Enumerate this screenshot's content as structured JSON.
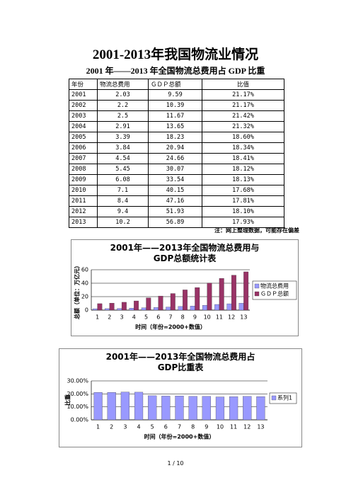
{
  "title": "2001-2013年我国物流业情况",
  "subtitle": "2001 年——2013 年全国物流总费用占 GDP 比重",
  "table": {
    "header": [
      "年份",
      "物流总费用",
      "ＧＤＰ总额",
      "比值"
    ],
    "rows": [
      [
        "2001",
        "2.03",
        "9.59",
        "21.17%"
      ],
      [
        "2002",
        "2.2",
        "10.39",
        "21.17%"
      ],
      [
        "2003",
        "2.5",
        "11.67",
        "21.42%"
      ],
      [
        "2004",
        "2.91",
        "13.65",
        "21.32%"
      ],
      [
        "2005",
        "3.39",
        "18.23",
        "18.60%"
      ],
      [
        "2006",
        "3.84",
        "20.94",
        "18.34%"
      ],
      [
        "2007",
        "4.54",
        "24.66",
        "18.41%"
      ],
      [
        "2008",
        "5.45",
        "30.07",
        "18.12%"
      ],
      [
        "2009",
        "6.08",
        "33.54",
        "18.13%"
      ],
      [
        "2010",
        "7.1",
        "40.15",
        "17.68%"
      ],
      [
        "2011",
        "8.4",
        "47.16",
        "17.81%"
      ],
      [
        "2012",
        "9.4",
        "51.93",
        "18.10%"
      ],
      [
        "2013",
        "10.2",
        "56.89",
        "17.93%"
      ]
    ]
  },
  "note": "注：网上整理数据，可能存在偏差",
  "chart_data": [
    {
      "type": "bar",
      "title": "2001年——2013年全国物流总费用与GDP总额统计表",
      "y_label": "总额（单位：万亿元）",
      "x_label": "时间（年份=2000+数值）",
      "categories": [
        "1",
        "2",
        "3",
        "4",
        "5",
        "6",
        "7",
        "8",
        "9",
        "10",
        "11",
        "12",
        "13"
      ],
      "series": [
        {
          "name": "物流总费用",
          "color": "#9999ff",
          "values": [
            2.03,
            2.2,
            2.5,
            2.91,
            3.39,
            3.84,
            4.54,
            5.45,
            6.08,
            7.1,
            8.4,
            9.4,
            10.2
          ]
        },
        {
          "name": "ＧＤＰ总额",
          "color": "#993366",
          "values": [
            9.59,
            10.39,
            11.67,
            13.65,
            18.23,
            20.94,
            24.66,
            30.07,
            33.54,
            40.15,
            47.16,
            51.93,
            56.89
          ]
        }
      ],
      "ylim": [
        0,
        60
      ],
      "yticks": [
        0,
        20,
        40,
        60
      ],
      "grid": true,
      "legend": "right"
    },
    {
      "type": "bar",
      "title": "2001年——2013年全国物流总费用占GDP比重表",
      "y_label": "比重",
      "x_label": "时间（年份=2000+数值）",
      "categories": [
        "1",
        "2",
        "3",
        "4",
        "5",
        "6",
        "7",
        "8",
        "9",
        "10",
        "11",
        "12",
        "13"
      ],
      "series": [
        {
          "name": "系列1",
          "color": "#9999ff",
          "values": [
            21.17,
            21.17,
            21.42,
            21.32,
            18.6,
            18.34,
            18.41,
            18.12,
            18.13,
            17.68,
            17.81,
            18.1,
            17.93
          ]
        }
      ],
      "ylim": [
        0,
        30
      ],
      "yticks": [
        {
          "value": 0,
          "label": "0.00%"
        },
        {
          "value": 10,
          "label": "10.00%"
        },
        {
          "value": 20,
          "label": "20.00%"
        },
        {
          "value": 30,
          "label": "30.00%"
        }
      ],
      "grid": true,
      "legend": "right"
    }
  ],
  "page_number": "1 / 10"
}
